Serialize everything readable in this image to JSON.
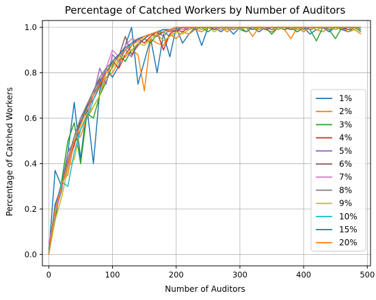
{
  "chart_data": {
    "type": "line",
    "title": "Percentage of Catched Workers by Number of Auditors",
    "xlabel": "Number of Auditors",
    "ylabel": "Percentage of Catched Workers",
    "xlim": [
      -10,
      505
    ],
    "ylim": [
      -0.05,
      1.03
    ],
    "x_ticks": [
      0,
      100,
      200,
      300,
      400,
      500
    ],
    "y_ticks": [
      0.0,
      0.2,
      0.4,
      0.6,
      0.8,
      1.0
    ],
    "y_tick_labels": [
      "0.0",
      "0.2",
      "0.4",
      "0.6",
      "0.8",
      "1.0"
    ],
    "grid": true,
    "legend_position": "center-right",
    "x": [
      0,
      10,
      20,
      30,
      40,
      50,
      60,
      70,
      80,
      90,
      100,
      110,
      120,
      130,
      140,
      150,
      160,
      170,
      180,
      190,
      200,
      210,
      220,
      230,
      240,
      250,
      260,
      270,
      280,
      290,
      300,
      310,
      320,
      330,
      340,
      350,
      360,
      370,
      380,
      390,
      400,
      410,
      420,
      430,
      440,
      450,
      460,
      470,
      480,
      490
    ],
    "series": [
      {
        "name": "1%",
        "color": "#1f77b4",
        "values": [
          0.0,
          0.37,
          0.3,
          0.45,
          0.67,
          0.42,
          0.65,
          0.4,
          0.72,
          0.82,
          0.78,
          0.83,
          0.92,
          1.0,
          0.75,
          0.85,
          0.95,
          0.8,
          0.97,
          0.87,
          1.0,
          0.93,
          0.97,
          1.0,
          0.92,
          1.0,
          1.0,
          0.98,
          1.0,
          0.97,
          1.0,
          0.98,
          1.0,
          0.98,
          1.0,
          0.97,
          1.0,
          0.99,
          1.0,
          0.98,
          1.0,
          0.97,
          0.99,
          1.0,
          0.98,
          1.0,
          0.99,
          0.98,
          1.0,
          0.99
        ]
      },
      {
        "name": "2%",
        "color": "#ff7f0e",
        "values": [
          0.0,
          0.2,
          0.32,
          0.35,
          0.5,
          0.52,
          0.6,
          0.65,
          0.7,
          0.78,
          0.8,
          0.85,
          0.87,
          0.9,
          0.88,
          0.72,
          0.95,
          0.93,
          0.92,
          0.97,
          0.95,
          0.98,
          0.97,
          0.99,
          0.98,
          1.0,
          0.99,
          1.0,
          0.98,
          1.0,
          0.99,
          1.0,
          0.96,
          1.0,
          0.99,
          0.98,
          1.0,
          0.99,
          0.95,
          1.0,
          0.98,
          1.0,
          0.99,
          0.98,
          1.0,
          0.99,
          1.0,
          0.98,
          0.99,
          0.97
        ]
      },
      {
        "name": "3%",
        "color": "#2ca02c",
        "values": [
          0.02,
          0.15,
          0.32,
          0.5,
          0.58,
          0.4,
          0.62,
          0.6,
          0.7,
          0.76,
          0.83,
          0.88,
          0.85,
          0.9,
          0.92,
          0.95,
          0.93,
          0.97,
          0.98,
          0.96,
          0.98,
          1.0,
          0.99,
          1.0,
          1.0,
          0.98,
          1.0,
          0.99,
          1.0,
          1.0,
          0.99,
          0.98,
          1.0,
          0.99,
          1.0,
          0.97,
          1.0,
          0.99,
          1.0,
          0.98,
          1.0,
          0.99,
          0.94,
          1.0,
          0.99,
          0.95,
          1.0,
          0.99,
          1.0,
          0.98
        ]
      },
      {
        "name": "4%",
        "color": "#d62728",
        "values": [
          0.0,
          0.2,
          0.3,
          0.4,
          0.48,
          0.6,
          0.65,
          0.68,
          0.74,
          0.8,
          0.85,
          0.82,
          0.88,
          0.92,
          0.95,
          0.93,
          0.96,
          0.98,
          0.9,
          0.97,
          0.99,
          0.98,
          1.0,
          0.99,
          1.0,
          1.0,
          0.99,
          1.0,
          1.0,
          0.99,
          1.0,
          1.0,
          0.99,
          1.0,
          1.0,
          0.99,
          1.0,
          1.0,
          0.99,
          1.0,
          1.0,
          0.99,
          1.0,
          1.0,
          0.99,
          1.0,
          1.0,
          0.99,
          1.0,
          1.0
        ]
      },
      {
        "name": "5%",
        "color": "#9467bd",
        "values": [
          0.0,
          0.18,
          0.28,
          0.45,
          0.5,
          0.55,
          0.62,
          0.7,
          0.82,
          0.75,
          0.88,
          0.85,
          0.9,
          0.87,
          0.93,
          0.95,
          0.97,
          0.98,
          0.96,
          0.99,
          0.98,
          1.0,
          1.0,
          0.99,
          1.0,
          1.0,
          0.99,
          1.0,
          1.0,
          0.99,
          1.0,
          1.0,
          0.99,
          1.0,
          1.0,
          0.99,
          1.0,
          1.0,
          0.99,
          1.0,
          1.0,
          0.99,
          1.0,
          1.0,
          0.99,
          1.0,
          1.0,
          0.99,
          1.0,
          1.0
        ]
      },
      {
        "name": "6%",
        "color": "#8c564b",
        "values": [
          0.0,
          0.22,
          0.3,
          0.4,
          0.5,
          0.57,
          0.65,
          0.72,
          0.77,
          0.8,
          0.84,
          0.87,
          0.96,
          0.88,
          0.92,
          0.95,
          0.97,
          0.96,
          0.98,
          0.99,
          0.98,
          1.0,
          0.99,
          1.0,
          1.0,
          1.0,
          0.99,
          1.0,
          1.0,
          1.0,
          0.99,
          1.0,
          1.0,
          1.0,
          0.99,
          1.0,
          1.0,
          1.0,
          0.99,
          1.0,
          1.0,
          1.0,
          0.99,
          1.0,
          1.0,
          1.0,
          0.99,
          1.0,
          1.0,
          1.0
        ]
      },
      {
        "name": "7%",
        "color": "#e377c2",
        "values": [
          0.05,
          0.18,
          0.3,
          0.38,
          0.5,
          0.58,
          0.66,
          0.7,
          0.76,
          0.82,
          0.9,
          0.87,
          0.92,
          0.95,
          0.94,
          0.96,
          0.97,
          0.98,
          0.99,
          0.98,
          1.0,
          0.99,
          1.0,
          1.0,
          0.99,
          1.0,
          1.0,
          0.99,
          1.0,
          1.0,
          0.99,
          1.0,
          1.0,
          0.99,
          1.0,
          1.0,
          0.99,
          1.0,
          1.0,
          0.99,
          1.0,
          1.0,
          0.99,
          1.0,
          1.0,
          0.99,
          1.0,
          1.0,
          0.99,
          1.0
        ]
      },
      {
        "name": "8%",
        "color": "#7f7f7f",
        "values": [
          0.0,
          0.2,
          0.3,
          0.42,
          0.52,
          0.6,
          0.66,
          0.72,
          0.78,
          0.82,
          0.85,
          0.88,
          0.9,
          0.92,
          0.95,
          0.96,
          0.97,
          0.98,
          0.99,
          0.98,
          0.99,
          1.0,
          1.0,
          1.0,
          0.99,
          1.0,
          1.0,
          1.0,
          0.99,
          1.0,
          1.0,
          1.0,
          0.99,
          1.0,
          1.0,
          1.0,
          0.99,
          1.0,
          1.0,
          1.0,
          0.99,
          1.0,
          1.0,
          1.0,
          0.99,
          1.0,
          1.0,
          1.0,
          0.99,
          1.0
        ]
      },
      {
        "name": "9%",
        "color": "#bcbd22",
        "values": [
          0.0,
          0.15,
          0.25,
          0.38,
          0.42,
          0.55,
          0.62,
          0.65,
          0.7,
          0.8,
          0.82,
          0.86,
          0.88,
          0.9,
          0.93,
          0.92,
          0.95,
          0.97,
          0.94,
          0.96,
          0.98,
          0.97,
          0.99,
          1.0,
          0.99,
          1.0,
          0.98,
          1.0,
          0.99,
          1.0,
          0.99,
          1.0,
          1.0,
          0.99,
          1.0,
          1.0,
          0.99,
          1.0,
          1.0,
          0.99,
          1.0,
          1.0,
          0.99,
          1.0,
          1.0,
          0.99,
          1.0,
          1.0,
          0.99,
          1.0
        ]
      },
      {
        "name": "10%",
        "color": "#17becf",
        "values": [
          0.0,
          0.2,
          0.32,
          0.3,
          0.45,
          0.55,
          0.6,
          0.68,
          0.75,
          0.8,
          0.85,
          0.88,
          0.9,
          0.93,
          0.95,
          0.96,
          0.97,
          0.98,
          0.99,
          0.99,
          1.0,
          1.0,
          1.0,
          1.0,
          1.0,
          1.0,
          1.0,
          1.0,
          1.0,
          1.0,
          1.0,
          1.0,
          1.0,
          1.0,
          1.0,
          1.0,
          1.0,
          1.0,
          1.0,
          1.0,
          1.0,
          1.0,
          1.0,
          1.0,
          1.0,
          1.0,
          1.0,
          1.0,
          1.0,
          1.0
        ]
      },
      {
        "name": "15%",
        "color": "#1f77b4",
        "values": [
          0.0,
          0.22,
          0.3,
          0.4,
          0.5,
          0.58,
          0.65,
          0.7,
          0.76,
          0.8,
          0.85,
          0.88,
          0.91,
          0.93,
          0.95,
          0.96,
          0.97,
          0.98,
          0.99,
          0.99,
          1.0,
          1.0,
          1.0,
          1.0,
          1.0,
          1.0,
          1.0,
          1.0,
          1.0,
          1.0,
          1.0,
          1.0,
          1.0,
          1.0,
          1.0,
          1.0,
          1.0,
          1.0,
          1.0,
          1.0,
          1.0,
          1.0,
          1.0,
          1.0,
          1.0,
          1.0,
          1.0,
          1.0,
          1.0,
          1.0
        ]
      },
      {
        "name": "20%",
        "color": "#ff7f0e",
        "values": [
          0.0,
          0.2,
          0.3,
          0.4,
          0.5,
          0.57,
          0.64,
          0.7,
          0.75,
          0.8,
          0.84,
          0.87,
          0.9,
          0.92,
          0.94,
          0.96,
          0.97,
          0.98,
          0.98,
          0.99,
          1.0,
          1.0,
          1.0,
          1.0,
          1.0,
          1.0,
          1.0,
          1.0,
          1.0,
          1.0,
          1.0,
          1.0,
          1.0,
          1.0,
          1.0,
          1.0,
          1.0,
          1.0,
          1.0,
          1.0,
          1.0,
          1.0,
          1.0,
          1.0,
          1.0,
          1.0,
          1.0,
          1.0,
          1.0,
          1.0
        ]
      }
    ]
  }
}
